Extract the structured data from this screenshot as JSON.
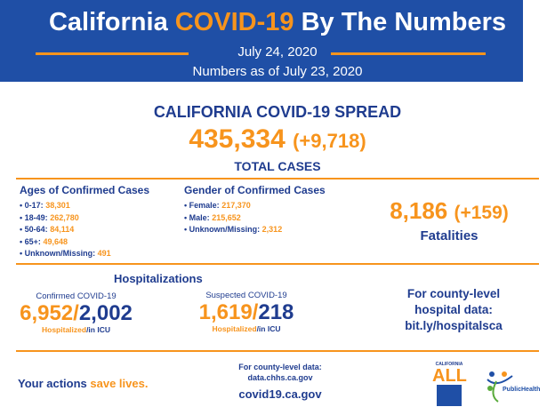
{
  "header": {
    "title_pre": "California ",
    "title_highlight": "COVID-19",
    "title_post": " By The Numbers",
    "date": "July 24, 2020",
    "as_of": "Numbers as of July 23, 2020"
  },
  "spread": {
    "heading": "CALIFORNIA COVID-19 SPREAD",
    "total": "435,334",
    "change": "(+9,718)",
    "label": "TOTAL CASES"
  },
  "ages": {
    "heading": "Ages of Confirmed Cases",
    "items": [
      {
        "label": "0-17:",
        "value": "38,301"
      },
      {
        "label": "18-49:",
        "value": "262,780"
      },
      {
        "label": "50-64:",
        "value": "84,114"
      },
      {
        "label": "65+:",
        "value": "49,648"
      },
      {
        "label": "Unknown/Missing:",
        "value": "491"
      }
    ]
  },
  "gender": {
    "heading": "Gender of Confirmed Cases",
    "items": [
      {
        "label": "Female:",
        "value": "217,370"
      },
      {
        "label": "Male:",
        "value": "215,652"
      },
      {
        "label": "Unknown/Missing:",
        "value": "2,312"
      }
    ]
  },
  "fatalities": {
    "value": "8,186",
    "change": "(+159)",
    "label": "Fatalities"
  },
  "hosp": {
    "heading": "Hospitalizations",
    "confirmed": {
      "label": "Confirmed COVID-19",
      "hospitalized": "6,952",
      "icu": "2,002",
      "sub_h": "Hospitalized",
      "sub_i": "/in ICU"
    },
    "suspected": {
      "label": "Suspected COVID-19",
      "hospitalized": "1,619",
      "icu": "218",
      "sub_h": "Hospitalized",
      "sub_i": "/in ICU"
    },
    "county": {
      "line1": "For county-level",
      "line2": "hospital data:",
      "link": "bit.ly/hospitalsca"
    }
  },
  "footer": {
    "slogan_pre": "Your actions ",
    "slogan_hl": "save lives.",
    "county_label": "For county-level data:",
    "county_link": "data.chhs.ca.gov",
    "site": "covid19.ca.gov",
    "logo1": "CALIFORNIA ALL",
    "logo2": "PublicHealth"
  },
  "colors": {
    "blue": "#1f4fa6",
    "navy": "#1f3c8f",
    "orange": "#f7941d"
  }
}
